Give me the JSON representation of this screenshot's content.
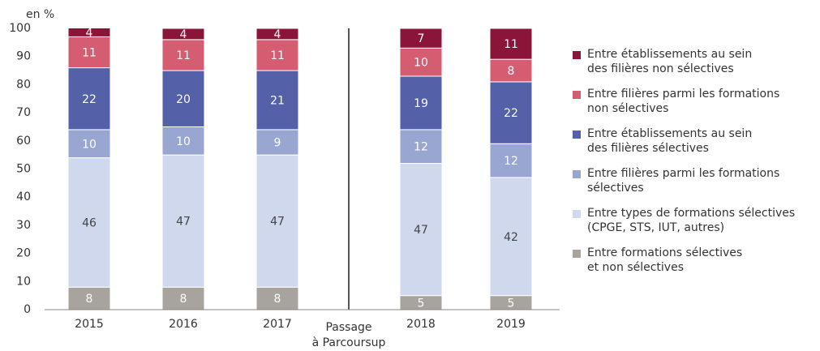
{
  "chart_data": {
    "type": "stacked_bar",
    "y_axis_label": "en %",
    "categories": [
      "2015",
      "2016",
      "2017",
      "2018",
      "2019"
    ],
    "series": [
      {
        "name": "Entre formations sélectives\net non sélectives",
        "color": "#a8a39d",
        "text_color": "#ffffff",
        "values": [
          8,
          8,
          8,
          5,
          5
        ]
      },
      {
        "name": "Entre types de formations sélectives\n(CPGE, STS, IUT, autres)",
        "color": "#d0d8ee",
        "text_color": "#444444",
        "values": [
          46,
          47,
          47,
          47,
          42
        ]
      },
      {
        "name": "Entre filières parmi les formations\nsélectives",
        "color": "#9aa6d2",
        "text_color": "#ffffff",
        "values": [
          10,
          10,
          9,
          12,
          12
        ]
      },
      {
        "name": "Entre établissements au sein\ndes filières sélectives",
        "color": "#5461a8",
        "text_color": "#ffffff",
        "values": [
          22,
          20,
          21,
          19,
          22
        ]
      },
      {
        "name": "Entre filières parmi les formations\nnon sélectives",
        "color": "#d45d72",
        "text_color": "#ffffff",
        "values": [
          11,
          11,
          11,
          10,
          8
        ]
      },
      {
        "name": "Entre établissements au sein\ndes filières non sélectives",
        "color": "#8b1538",
        "text_color": "#ffffff",
        "values": [
          4,
          4,
          4,
          7,
          11
        ]
      }
    ],
    "ylim": [
      0,
      100
    ],
    "yticks": [
      0,
      10,
      20,
      30,
      40,
      50,
      60,
      70,
      80,
      90,
      100
    ],
    "annotation": [
      "Passage",
      "à Parcoursup"
    ]
  }
}
